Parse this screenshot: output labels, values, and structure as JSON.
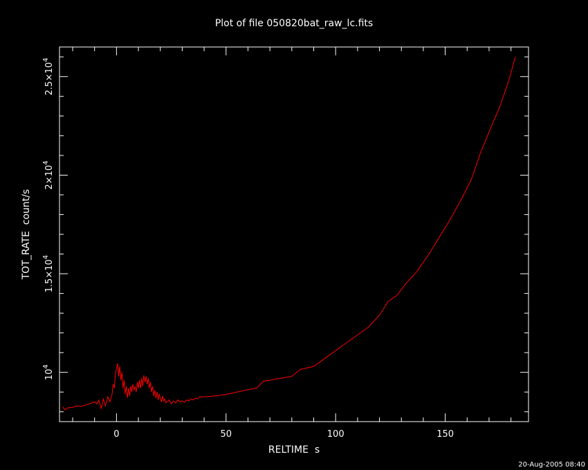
{
  "chart_data": {
    "type": "line",
    "title": "Plot of file 050820bat_raw_lc.fits",
    "xlabel": "RELTIME  s",
    "ylabel": "TOT_RATE  count/s",
    "xlim": [
      -26,
      188
    ],
    "ylim": [
      7500,
      26500
    ],
    "x_ticks": [
      0,
      50,
      100,
      150
    ],
    "x_tick_labels": [
      "0",
      "50",
      "100",
      "150"
    ],
    "y_ticks": [
      10000,
      15000,
      20000,
      25000
    ],
    "y_tick_labels": [
      {
        "base": "10",
        "mult": "",
        "exp": "4"
      },
      {
        "base": "10",
        "mult": "1.5×",
        "exp": "4"
      },
      {
        "base": "10",
        "mult": "2×",
        "exp": "4"
      },
      {
        "base": "10",
        "mult": "2.5×",
        "exp": "4"
      }
    ],
    "grid": false,
    "line_color": "#ff0000",
    "series": [
      {
        "values": [
          [
            -24.5,
            8250
          ],
          [
            -23.5,
            8100
          ],
          [
            -22,
            8200
          ],
          [
            -20,
            8230
          ],
          [
            -18,
            8300
          ],
          [
            -16,
            8270
          ],
          [
            -14,
            8350
          ],
          [
            -12,
            8420
          ],
          [
            -10,
            8500
          ],
          [
            -9,
            8400
          ],
          [
            -8,
            8600
          ],
          [
            -7,
            8150
          ],
          [
            -6,
            8650
          ],
          [
            -5,
            8300
          ],
          [
            -4,
            8750
          ],
          [
            -3,
            8500
          ],
          [
            -2,
            8900
          ],
          [
            -1.5,
            9400
          ],
          [
            -1,
            9200
          ],
          [
            -0.5,
            9900
          ],
          [
            0,
            10200
          ],
          [
            0.5,
            10450
          ],
          [
            1,
            9800
          ],
          [
            1.5,
            10300
          ],
          [
            2,
            9600
          ],
          [
            2.5,
            10000
          ],
          [
            3,
            9200
          ],
          [
            3.5,
            9600
          ],
          [
            4,
            8900
          ],
          [
            4.5,
            9300
          ],
          [
            5,
            8700
          ],
          [
            5.5,
            9200
          ],
          [
            6,
            8800
          ],
          [
            6.5,
            9300
          ],
          [
            7,
            9000
          ],
          [
            7.5,
            9400
          ],
          [
            8,
            9100
          ],
          [
            8.5,
            9300
          ],
          [
            9,
            9000
          ],
          [
            9.5,
            9500
          ],
          [
            10,
            9200
          ],
          [
            10.5,
            9600
          ],
          [
            11,
            9200
          ],
          [
            11.5,
            9700
          ],
          [
            12,
            9300
          ],
          [
            12.5,
            9850
          ],
          [
            13,
            9500
          ],
          [
            13.5,
            9800
          ],
          [
            14,
            9400
          ],
          [
            14.5,
            9700
          ],
          [
            15,
            9200
          ],
          [
            15.5,
            9500
          ],
          [
            16,
            9000
          ],
          [
            16.5,
            9300
          ],
          [
            17,
            8800
          ],
          [
            17.5,
            9100
          ],
          [
            18,
            8700
          ],
          [
            18.5,
            9000
          ],
          [
            19,
            8600
          ],
          [
            19.5,
            8900
          ],
          [
            20,
            8700
          ],
          [
            20.5,
            8500
          ],
          [
            21,
            8800
          ],
          [
            21.5,
            8550
          ],
          [
            22,
            8650
          ],
          [
            22.5,
            8450
          ],
          [
            23,
            8500
          ],
          [
            24,
            8600
          ],
          [
            25,
            8400
          ],
          [
            26,
            8550
          ],
          [
            27,
            8450
          ],
          [
            28,
            8600
          ],
          [
            29,
            8500
          ],
          [
            30,
            8550
          ],
          [
            31,
            8480
          ],
          [
            32,
            8600
          ],
          [
            33,
            8550
          ],
          [
            34,
            8650
          ],
          [
            35,
            8600
          ],
          [
            36,
            8700
          ],
          [
            37,
            8650
          ],
          [
            38,
            8750
          ],
          [
            40,
            8760
          ],
          [
            45,
            8800
          ],
          [
            50,
            8880
          ],
          [
            55,
            9000
          ],
          [
            60,
            9120
          ],
          [
            64,
            9200
          ],
          [
            67,
            9550
          ],
          [
            70,
            9600
          ],
          [
            75,
            9700
          ],
          [
            80,
            9800
          ],
          [
            84,
            10150
          ],
          [
            90,
            10300
          ],
          [
            95,
            10700
          ],
          [
            100,
            11100
          ],
          [
            105,
            11500
          ],
          [
            110,
            11900
          ],
          [
            115,
            12300
          ],
          [
            120,
            12900
          ],
          [
            124,
            13600
          ],
          [
            128,
            13900
          ],
          [
            132,
            14500
          ],
          [
            137,
            15100
          ],
          [
            142,
            15900
          ],
          [
            147,
            16800
          ],
          [
            152,
            17700
          ],
          [
            157,
            18700
          ],
          [
            162,
            19800
          ],
          [
            166,
            21100
          ],
          [
            170,
            22200
          ],
          [
            175,
            23500
          ],
          [
            179,
            24800
          ],
          [
            182,
            26000
          ]
        ]
      }
    ]
  },
  "timestamp": "20-Aug-2005 08:40"
}
